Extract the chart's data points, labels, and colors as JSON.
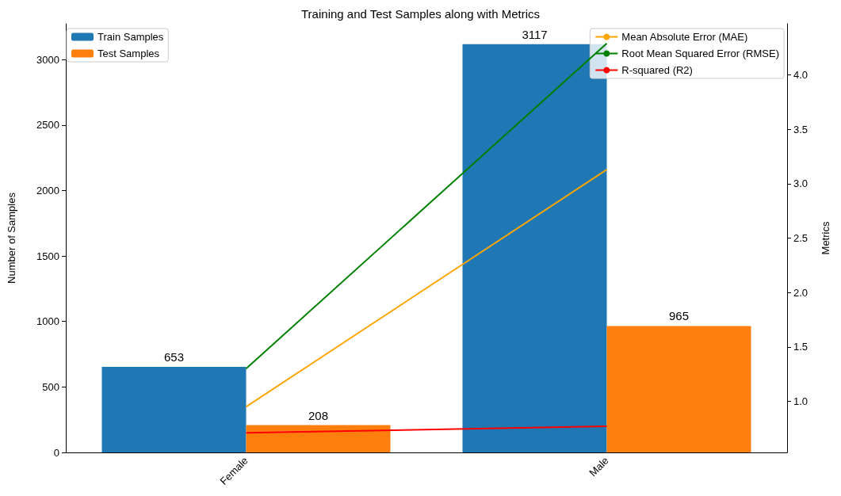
{
  "chart_data": {
    "type": "bar",
    "title": "Training and Test Samples along with Metrics",
    "ylabel": "Number of Samples",
    "y2label": "Metrics",
    "categories": [
      "Female",
      "Male"
    ],
    "series": [
      {
        "name": "Train Samples",
        "color": "#1f77b4",
        "values": [
          653,
          3117
        ],
        "value_labels": [
          "653",
          "3117"
        ]
      },
      {
        "name": "Test Samples",
        "color": "#ff7f0e",
        "values": [
          208,
          965
        ],
        "value_labels": [
          "208",
          "965"
        ]
      },
      {
        "name": "Mean Absolute Error (MAE)",
        "type": "line",
        "axis": "y2",
        "color": "#ffa500",
        "values": [
          0.95,
          3.13
        ]
      },
      {
        "name": "Root Mean Squared Error (RMSE)",
        "type": "line",
        "axis": "y2",
        "color": "#008000",
        "values": [
          1.3,
          4.29
        ]
      },
      {
        "name": "R-squared (R2)",
        "type": "line",
        "axis": "y2",
        "color": "#ff0000",
        "values": [
          0.71,
          0.77
        ]
      }
    ],
    "ylim": [
      0,
      3273
    ],
    "yticks": [
      0,
      500,
      1000,
      1500,
      2000,
      2500,
      3000
    ],
    "y2lim": [
      0.53,
      4.47
    ],
    "y2ticks": [
      {
        "value": 1,
        "label": "1.0"
      },
      1.5,
      {
        "value": 2,
        "label": "2.0"
      },
      2.5,
      {
        "value": 3,
        "label": "3.0"
      },
      3.5,
      {
        "value": 4,
        "label": "4.0"
      }
    ],
    "legend": "top",
    "grid": false
  }
}
